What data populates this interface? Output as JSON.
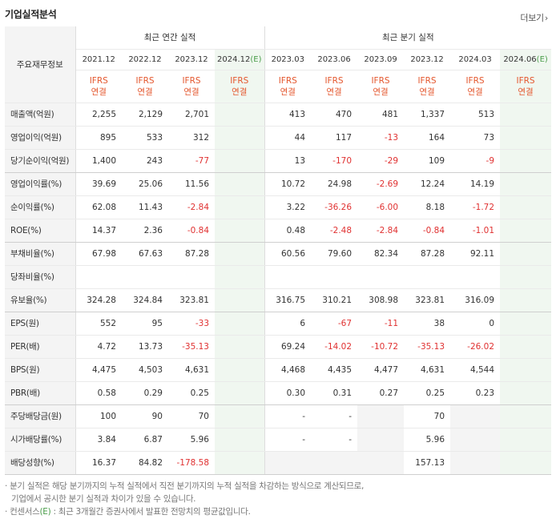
{
  "title": "기업실적분석",
  "more_label": "더보기",
  "more_icon": "chevron-right-icon",
  "label_header": "주요재무정보",
  "group_annual": "최근 연간 실적",
  "group_quarter": "최근 분기 실적",
  "periods": [
    {
      "label": "2021.12",
      "est": ""
    },
    {
      "label": "2022.12",
      "est": ""
    },
    {
      "label": "2023.12",
      "est": ""
    },
    {
      "label": "2024.12",
      "est": "(E)"
    },
    {
      "label": "2023.03",
      "est": ""
    },
    {
      "label": "2023.06",
      "est": ""
    },
    {
      "label": "2023.09",
      "est": ""
    },
    {
      "label": "2023.12",
      "est": ""
    },
    {
      "label": "2024.03",
      "est": ""
    },
    {
      "label": "2024.06",
      "est": "(E)"
    }
  ],
  "basis_line1": "IFRS",
  "basis_line2": "연결",
  "rows": [
    {
      "label": "매출액(억원)",
      "values": [
        "2,255",
        "2,129",
        "2,701",
        "",
        "413",
        "470",
        "481",
        "1,337",
        "513",
        ""
      ]
    },
    {
      "label": "영업이익(억원)",
      "values": [
        "895",
        "533",
        "312",
        "",
        "44",
        "117",
        "-13",
        "164",
        "73",
        ""
      ]
    },
    {
      "label": "당기순이익(억원)",
      "values": [
        "1,400",
        "243",
        "-77",
        "",
        "13",
        "-170",
        "-29",
        "109",
        "-9",
        ""
      ]
    },
    {
      "label": "영업이익률(%)",
      "values": [
        "39.69",
        "25.06",
        "11.56",
        "",
        "10.72",
        "24.98",
        "-2.69",
        "12.24",
        "14.19",
        ""
      ]
    },
    {
      "label": "순이익률(%)",
      "values": [
        "62.08",
        "11.43",
        "-2.84",
        "",
        "3.22",
        "-36.26",
        "-6.00",
        "8.18",
        "-1.72",
        ""
      ]
    },
    {
      "label": "ROE(%)",
      "values": [
        "14.37",
        "2.36",
        "-0.84",
        "",
        "0.48",
        "-2.48",
        "-2.84",
        "-0.84",
        "-1.01",
        ""
      ]
    },
    {
      "label": "부채비율(%)",
      "values": [
        "67.98",
        "67.63",
        "87.28",
        "",
        "60.56",
        "79.60",
        "82.34",
        "87.28",
        "92.11",
        ""
      ]
    },
    {
      "label": "당좌비율(%)",
      "values": [
        "",
        "",
        "",
        "",
        "",
        "",
        "",
        "",
        "",
        ""
      ]
    },
    {
      "label": "유보율(%)",
      "values": [
        "324.28",
        "324.84",
        "323.81",
        "",
        "316.75",
        "310.21",
        "308.98",
        "323.81",
        "316.09",
        ""
      ]
    },
    {
      "label": "EPS(원)",
      "values": [
        "552",
        "95",
        "-33",
        "",
        "6",
        "-67",
        "-11",
        "38",
        "0",
        ""
      ]
    },
    {
      "label": "PER(배)",
      "values": [
        "4.72",
        "13.73",
        "-35.13",
        "",
        "69.24",
        "-14.02",
        "-10.72",
        "-35.13",
        "-26.02",
        ""
      ]
    },
    {
      "label": "BPS(원)",
      "values": [
        "4,475",
        "4,503",
        "4,631",
        "",
        "4,468",
        "4,435",
        "4,477",
        "4,631",
        "4,544",
        ""
      ]
    },
    {
      "label": "PBR(배)",
      "values": [
        "0.58",
        "0.29",
        "0.25",
        "",
        "0.30",
        "0.31",
        "0.27",
        "0.25",
        "0.23",
        ""
      ]
    },
    {
      "label": "주당배당금(원)",
      "values": [
        "100",
        "90",
        "70",
        "",
        "-",
        "-",
        "",
        "70",
        "",
        ""
      ]
    },
    {
      "label": "시가배당률(%)",
      "values": [
        "3.84",
        "6.87",
        "5.96",
        "",
        "-",
        "-",
        "",
        "5.96",
        "",
        ""
      ]
    },
    {
      "label": "배당성향(%)",
      "values": [
        "16.37",
        "84.82",
        "-178.58",
        "",
        "",
        "",
        "",
        "157.13",
        "",
        ""
      ]
    }
  ],
  "notes": {
    "line1": "· 분기 실적은 해당 분기까지의 누적 실적에서 직전 분기까지의 누적 실적을 차감하는 방식으로 계산되므로,",
    "line2": "기업에서 공시한 분기 실적과 차이가 있을 수 있습니다.",
    "line3_prefix": "· 컨센서스",
    "line3_e": "(E)",
    "line3_suffix": " : 최근 3개월간 증권사에서 발표한 전망치의 평균값입니다."
  }
}
